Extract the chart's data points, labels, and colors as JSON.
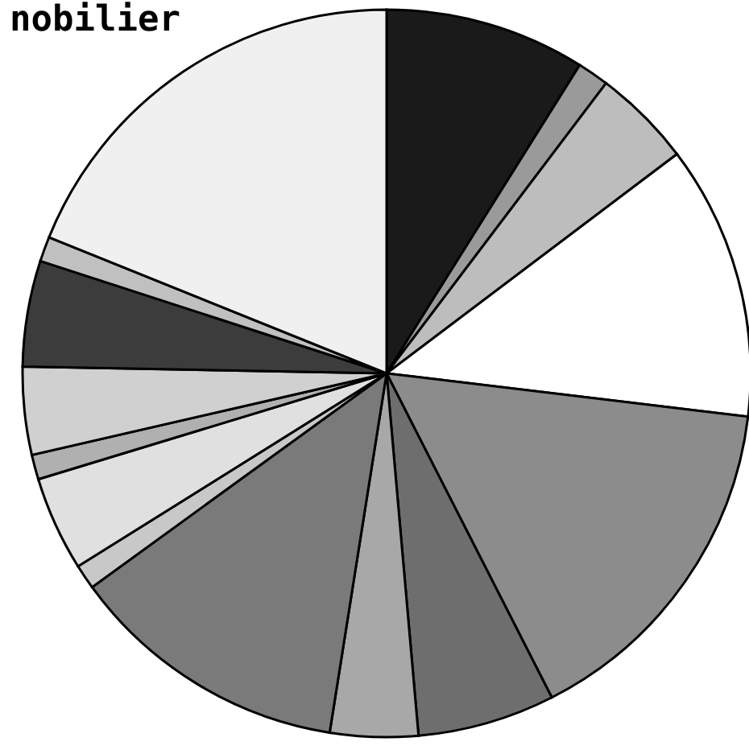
{
  "chart_data": {
    "type": "pie",
    "title": "nobilier",
    "categories": [
      null,
      null,
      null,
      null,
      null,
      null,
      null,
      null,
      null,
      null,
      null,
      null,
      null,
      null,
      null
    ],
    "values": [
      8.9,
      1.4,
      4.4,
      12.2,
      15.6,
      6.1,
      3.9,
      12.5,
      1.1,
      4.2,
      1.1,
      3.9,
      4.7,
      1.1,
      18.9
    ],
    "colors": [
      "#1a1a1a",
      "#9a9a9a",
      "#bdbdbd",
      "#ffffff",
      "#8c8c8c",
      "#6e6e6e",
      "#a8a8a8",
      "#7a7a7a",
      "#c8c8c8",
      "#e0e0e0",
      "#b0b0b0",
      "#d0d0d0",
      "#3c3c3c",
      "#c0c0c0",
      "#f0f0f0"
    ],
    "legend": false
  }
}
